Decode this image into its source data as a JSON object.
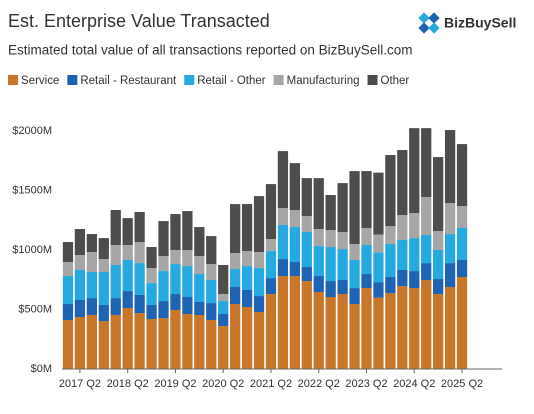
{
  "chart_data": {
    "type": "stacked_bar",
    "title": "Est. Enterprise Value Transacted",
    "subtitle": "Estimated total value of all transactions reported on BizBuySell.com",
    "logo": "BizBuySell",
    "categories": [
      null,
      "2017 Q2",
      null,
      null,
      null,
      "2018 Q2",
      null,
      null,
      null,
      "2019 Q2",
      null,
      null,
      null,
      "2020 Q2",
      null,
      null,
      null,
      "2021 Q2",
      null,
      null,
      null,
      "2022 Q2",
      null,
      null,
      null,
      "2023 Q2",
      null,
      null,
      null,
      "2024 Q2",
      null,
      null,
      null,
      "2025 Q2"
    ],
    "series": [
      {
        "name": "Service",
        "color": "#c8762a",
        "values": [
          412,
          437,
          454,
          403,
          454,
          512,
          470,
          420,
          428,
          496,
          462,
          454,
          412,
          361,
          546,
          521,
          479,
          630,
          781,
          781,
          739,
          647,
          605,
          630,
          546,
          680,
          600,
          638,
          697,
          680,
          748,
          630,
          689,
          773
        ]
      },
      {
        "name": "Retail - Restaurant",
        "color": "#1f63b5",
        "values": [
          134,
          143,
          142,
          135,
          142,
          143,
          152,
          118,
          143,
          134,
          143,
          109,
          142,
          101,
          143,
          143,
          134,
          134,
          143,
          118,
          118,
          134,
          134,
          118,
          134,
          118,
          130,
          135,
          135,
          143,
          142,
          126,
          201,
          143
        ]
      },
      {
        "name": "Retail - Other",
        "color": "#25a9e0",
        "values": [
          235,
          252,
          219,
          277,
          278,
          261,
          268,
          184,
          252,
          252,
          260,
          235,
          194,
          109,
          151,
          201,
          235,
          227,
          286,
          294,
          294,
          252,
          286,
          260,
          236,
          244,
          250,
          277,
          252,
          277,
          236,
          244,
          244,
          269
        ]
      },
      {
        "name": "Manufacturing",
        "color": "#a6a6a6",
        "values": [
          118,
          126,
          168,
          109,
          168,
          126,
          177,
          126,
          126,
          118,
          135,
          151,
          134,
          59,
          134,
          126,
          135,
          101,
          142,
          143,
          134,
          143,
          143,
          143,
          134,
          143,
          150,
          151,
          210,
          210,
          319,
          159,
          260,
          184
        ]
      },
      {
        "name": "Other",
        "color": "#4d4d4d",
        "values": [
          168,
          218,
          151,
          176,
          294,
          226,
          252,
          177,
          294,
          302,
          327,
          244,
          235,
          244,
          412,
          395,
          470,
          462,
          479,
          394,
          319,
          428,
          294,
          411,
          613,
          478,
          520,
          597,
          546,
          714,
          579,
          622,
          614,
          521
        ]
      }
    ],
    "ylim": [
      0,
      2000
    ],
    "yticks": [
      {
        "value": 0,
        "label": "$0M"
      },
      {
        "value": 500,
        "label": "$500M"
      },
      {
        "value": 1000,
        "label": "$1000M"
      },
      {
        "value": 1500,
        "label": "$1500M"
      },
      {
        "value": 2000,
        "label": "$2000M"
      }
    ],
    "grid": false
  }
}
